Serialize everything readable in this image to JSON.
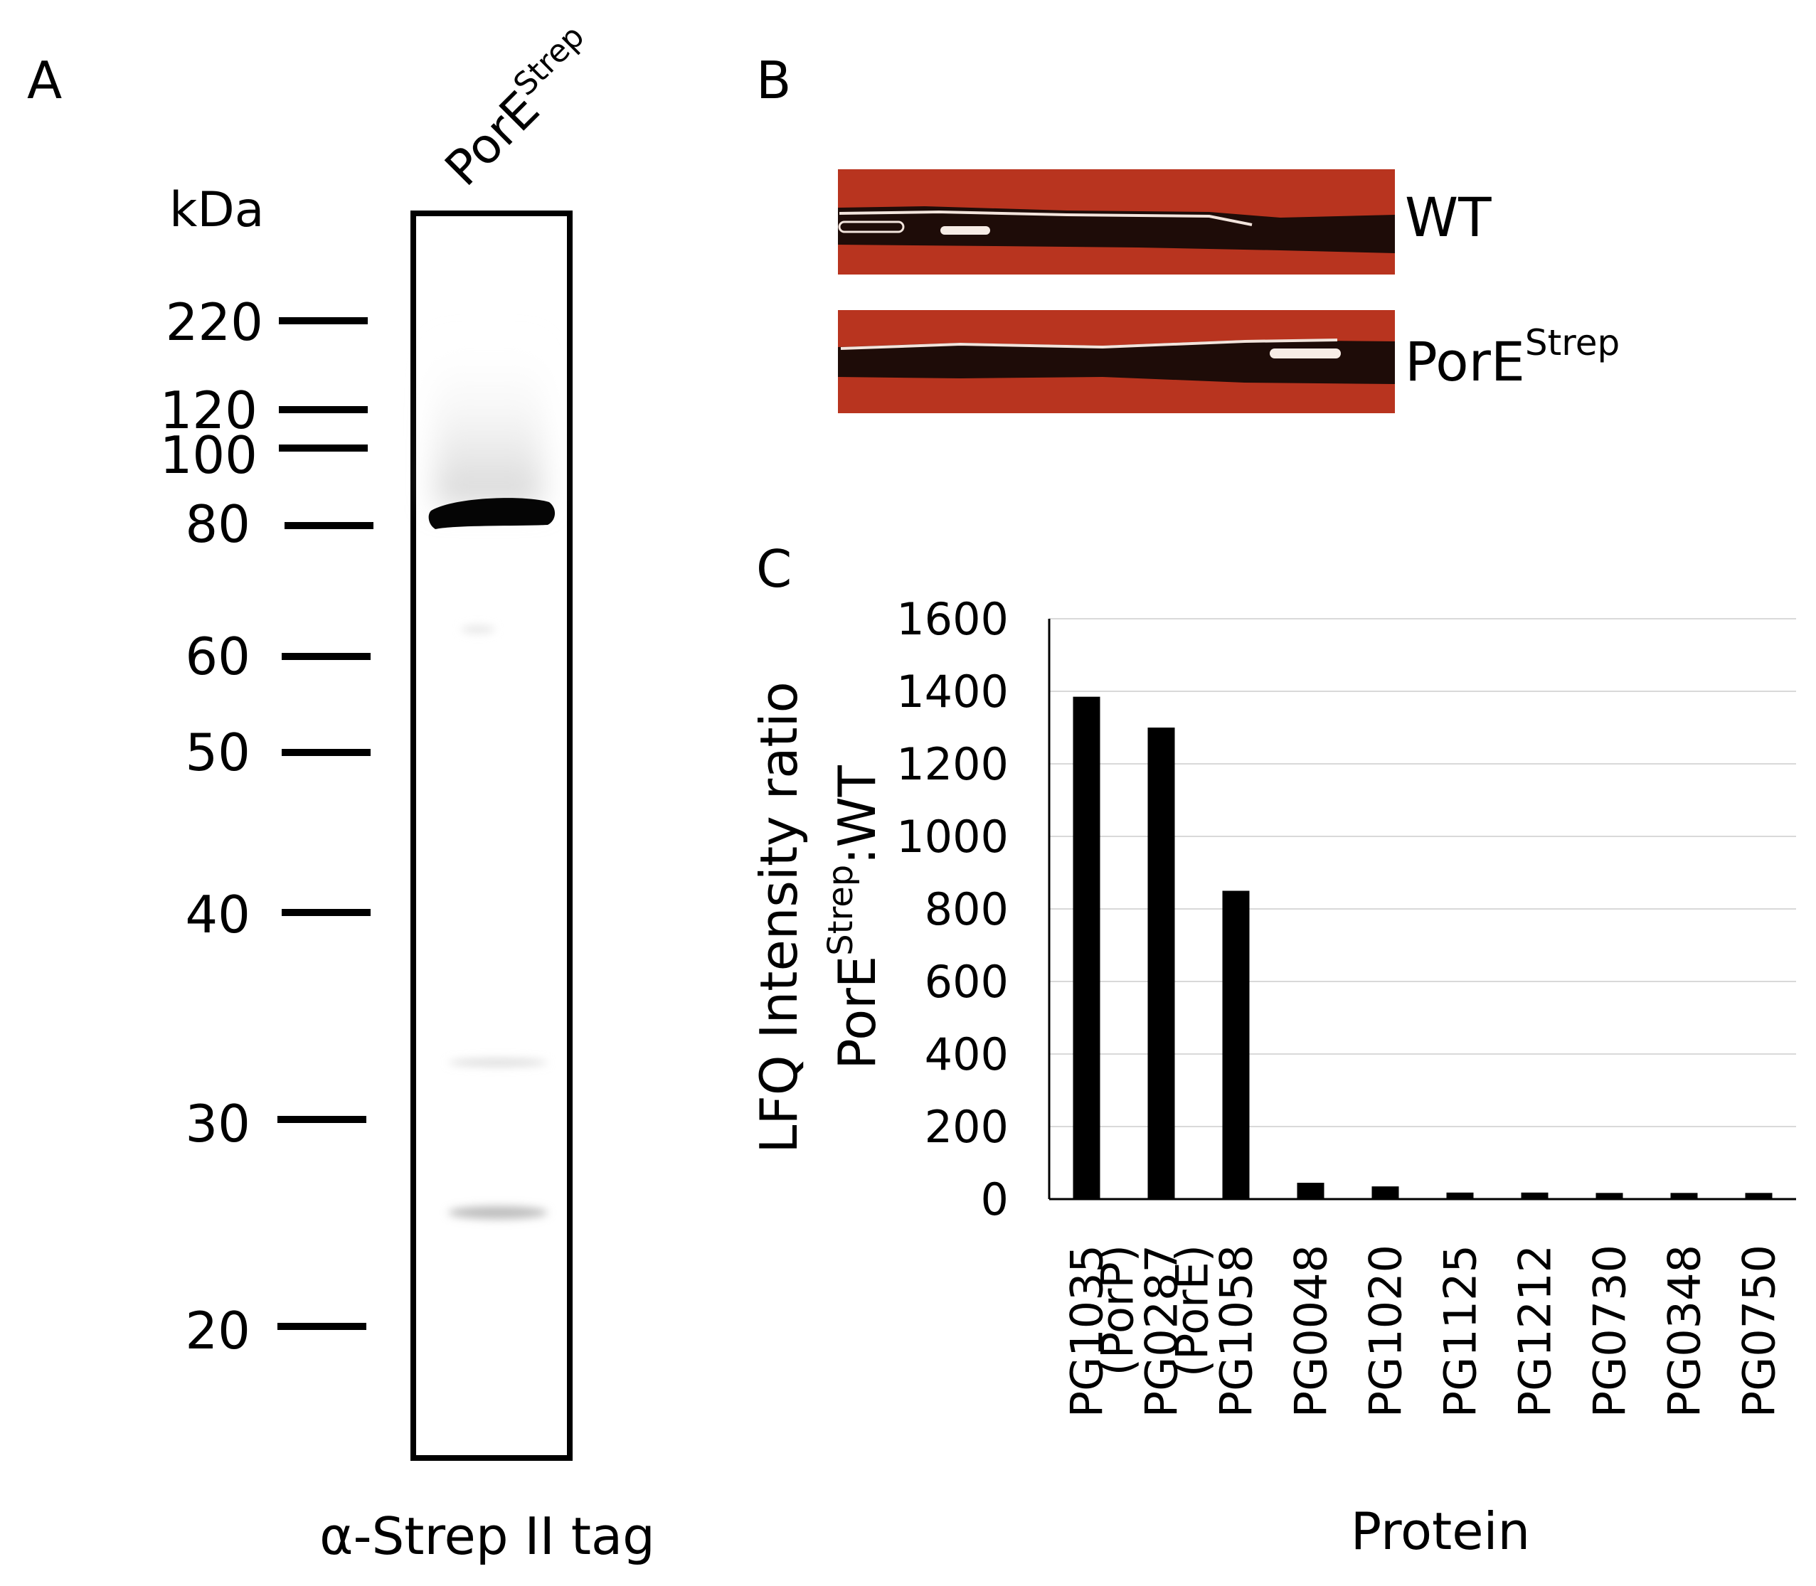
{
  "panel_a": {
    "letter": "A",
    "lane_label_main": "PorE",
    "lane_label_sup": "Strep",
    "unit": "kDa",
    "markers": [
      "220",
      "120",
      "100",
      "80",
      "60",
      "50",
      "40",
      "30",
      "20"
    ],
    "caption": "α-Strep II tag"
  },
  "panel_b": {
    "letter": "B",
    "rows": [
      {
        "label_main": "WT",
        "label_sup": ""
      },
      {
        "label_main": "PorE",
        "label_sup": "Strep"
      }
    ],
    "colors": {
      "agar": "#b8341f",
      "colony": "#1e0c08"
    }
  },
  "panel_c": {
    "letter": "C",
    "ylabel_line1": "LFQ Intensity ratio",
    "ylabel_line2_a": "PorE",
    "ylabel_line2_sup": "Strep",
    "ylabel_line2_b": ":WT",
    "xlabel": "Protein",
    "sublabels": [
      "",
      "(PorP)",
      "(PorE)",
      "",
      "",
      "",
      "",
      "",
      "",
      ""
    ]
  },
  "chart_data": {
    "type": "bar",
    "categories": [
      "PG1035",
      "PG0287",
      "PG1058",
      "PG0048",
      "PG1020",
      "PG1125",
      "PG1212",
      "PG0730",
      "PG0348",
      "PG0750"
    ],
    "values": [
      1385,
      1300,
      850,
      45,
      35,
      18,
      18,
      17,
      17,
      17
    ],
    "ylim": [
      0,
      1600
    ],
    "yticks": [
      0,
      200,
      400,
      600,
      800,
      1000,
      1200,
      1400,
      1600
    ],
    "grid": true,
    "color": "#000000"
  }
}
